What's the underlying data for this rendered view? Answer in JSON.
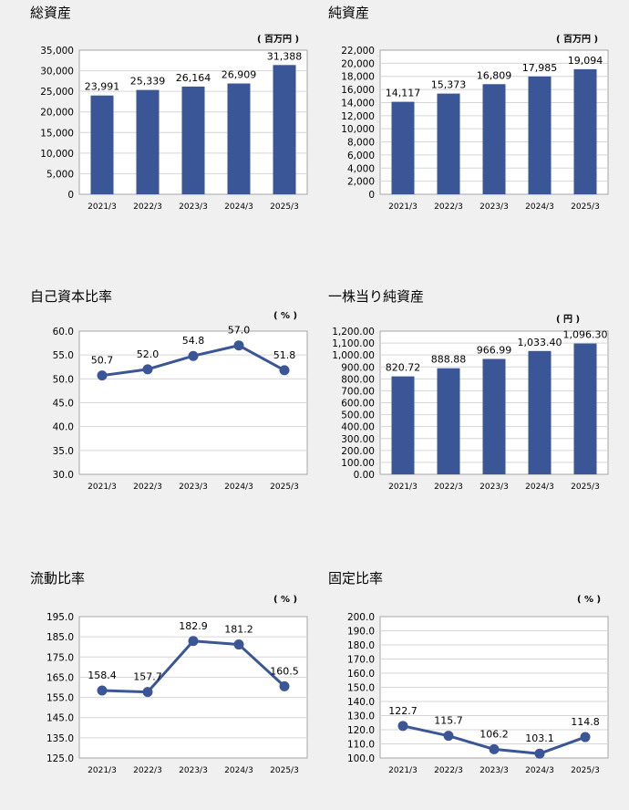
{
  "charts": [
    {
      "title": "総資産",
      "unit": "( 百万円 )",
      "chart_data": {
        "type": "bar",
        "categories": [
          "2021/3",
          "2022/3",
          "2023/3",
          "2024/3",
          "2025/3"
        ],
        "values": [
          23991,
          25339,
          26164,
          26909,
          31388
        ],
        "value_labels": [
          "23,991",
          "25,339",
          "26,164",
          "26,909",
          "31,388"
        ],
        "ylim": [
          0,
          35000
        ],
        "yticks": [
          "0",
          "5,000",
          "10,000",
          "15,000",
          "20,000",
          "25,000",
          "30,000",
          "35,000"
        ],
        "grid": true
      }
    },
    {
      "title": "純資産",
      "unit": "( 百万円 )",
      "chart_data": {
        "type": "bar",
        "categories": [
          "2021/3",
          "2022/3",
          "2023/3",
          "2024/3",
          "2025/3"
        ],
        "values": [
          14117,
          15373,
          16809,
          17985,
          19094
        ],
        "value_labels": [
          "14,117",
          "15,373",
          "16,809",
          "17,985",
          "19,094"
        ],
        "ylim": [
          0,
          22000
        ],
        "yticks": [
          "0",
          "2,000",
          "4,000",
          "6,000",
          "8,000",
          "10,000",
          "12,000",
          "14,000",
          "16,000",
          "18,000",
          "20,000",
          "22,000"
        ],
        "grid": true
      }
    },
    {
      "title": "自己資本比率",
      "unit": "( % )",
      "chart_data": {
        "type": "line",
        "categories": [
          "2021/3",
          "2022/3",
          "2023/3",
          "2024/3",
          "2025/3"
        ],
        "values": [
          50.7,
          52.0,
          54.8,
          57.0,
          51.8
        ],
        "value_labels": [
          "50.7",
          "52.0",
          "54.8",
          "57.0",
          "51.8"
        ],
        "ylim": [
          30,
          60
        ],
        "yticks": [
          "30.0",
          "35.0",
          "40.0",
          "45.0",
          "50.0",
          "55.0",
          "60.0"
        ],
        "grid": true
      }
    },
    {
      "title": "一株当り純資産",
      "unit": "( 円 )",
      "chart_data": {
        "type": "bar",
        "categories": [
          "2021/3",
          "2022/3",
          "2023/3",
          "2024/3",
          "2025/3"
        ],
        "values": [
          820.72,
          888.88,
          966.99,
          1033.4,
          1096.3
        ],
        "value_labels": [
          "820.72",
          "888.88",
          "966.99",
          "1,033.40",
          "1,096.30"
        ],
        "ylim": [
          0,
          1200
        ],
        "yticks": [
          "0.00",
          "100.00",
          "200.00",
          "300.00",
          "400.00",
          "500.00",
          "600.00",
          "700.00",
          "800.00",
          "900.00",
          "1,000.00",
          "1,100.00",
          "1,200.00"
        ],
        "grid": true
      }
    },
    {
      "title": "流動比率",
      "unit": "( % )",
      "chart_data": {
        "type": "line",
        "categories": [
          "2021/3",
          "2022/3",
          "2023/3",
          "2024/3",
          "2025/3"
        ],
        "values": [
          158.4,
          157.7,
          182.9,
          181.2,
          160.5
        ],
        "value_labels": [
          "158.4",
          "157.7",
          "182.9",
          "181.2",
          "160.5"
        ],
        "ylim": [
          125,
          195
        ],
        "yticks": [
          "125.0",
          "135.0",
          "145.0",
          "155.0",
          "165.0",
          "175.0",
          "185.0",
          "195.0"
        ],
        "grid": true
      }
    },
    {
      "title": "固定比率",
      "unit": "( % )",
      "chart_data": {
        "type": "line",
        "categories": [
          "2021/3",
          "2022/3",
          "2023/3",
          "2024/3",
          "2025/3"
        ],
        "values": [
          122.7,
          115.7,
          106.2,
          103.1,
          114.8
        ],
        "value_labels": [
          "122.7",
          "115.7",
          "106.2",
          "103.1",
          "114.8"
        ],
        "ylim": [
          100,
          200
        ],
        "yticks": [
          "100.0",
          "110.0",
          "120.0",
          "130.0",
          "140.0",
          "150.0",
          "160.0",
          "170.0",
          "180.0",
          "190.0",
          "200.0"
        ],
        "grid": true
      }
    }
  ],
  "colors": {
    "bar": "#3a5696",
    "line": "#3a5696",
    "grid": "#d6d6d6",
    "plot_bg": "#ffffff",
    "axis": "#a6a6a6"
  }
}
